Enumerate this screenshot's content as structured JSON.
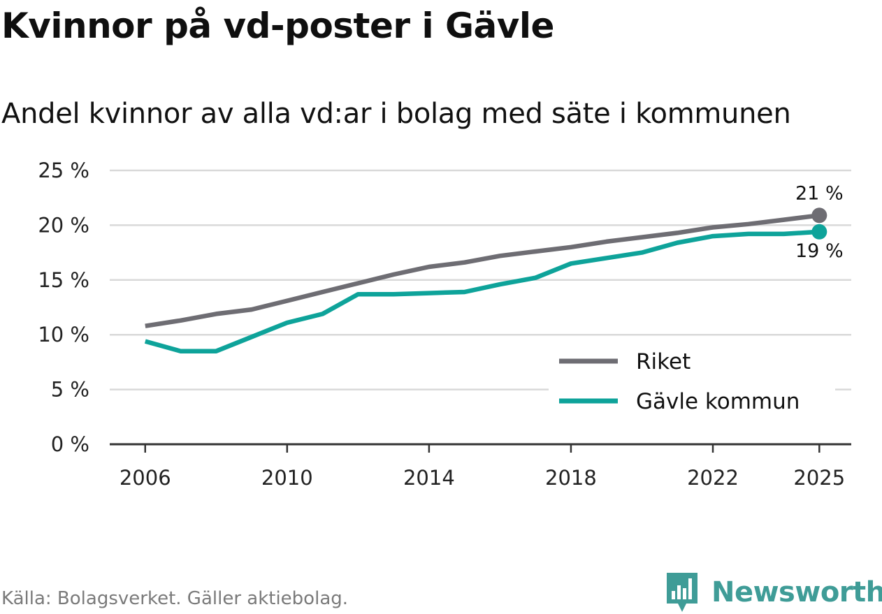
{
  "header": {
    "title": "Kvinnor på vd-poster i Gävle",
    "subtitle": "Andel kvinnor av alla vd:ar i bolag med säte i kommunen"
  },
  "footer": {
    "source": "Källa: Bolagsverket. Gäller aktiebolag.",
    "brand": "Newsworthy",
    "brand_icon": "bar-chart-icon"
  },
  "colors": {
    "riket": "#6e6d73",
    "gavle": "#0ea39a",
    "grid": "#d9d9d9",
    "axis": "#333333",
    "brand": "#3f9c97"
  },
  "chart_data": {
    "type": "line",
    "title": "Kvinnor på vd-poster i Gävle",
    "subtitle": "Andel kvinnor av alla vd:ar i bolag med säte i kommunen",
    "xlabel": "",
    "ylabel": "",
    "x": [
      2006,
      2007,
      2008,
      2009,
      2010,
      2011,
      2012,
      2013,
      2014,
      2015,
      2016,
      2017,
      2018,
      2019,
      2020,
      2021,
      2022,
      2023,
      2024,
      2025
    ],
    "xlim": [
      2005,
      2025.9
    ],
    "x_ticks": [
      2006,
      2010,
      2014,
      2018,
      2022,
      2025
    ],
    "x_tick_labels": [
      "2006",
      "2010",
      "2014",
      "2018",
      "2022",
      "2025"
    ],
    "ylim": [
      0,
      25
    ],
    "y_ticks": [
      0,
      5,
      10,
      15,
      20,
      25
    ],
    "y_tick_labels": [
      "0 %",
      "5 %",
      "10 %",
      "15 %",
      "20 %",
      "25 %"
    ],
    "grid": true,
    "legend_position": "bottom-right",
    "series": [
      {
        "name": "Riket",
        "key": "riket",
        "values": [
          10.8,
          11.3,
          11.9,
          12.3,
          13.1,
          13.9,
          14.7,
          15.5,
          16.2,
          16.6,
          17.2,
          17.6,
          18.0,
          18.5,
          18.9,
          19.3,
          19.8,
          20.1,
          20.5,
          20.9
        ],
        "end_label": "21 %"
      },
      {
        "name": "Gävle kommun",
        "key": "gavle",
        "values": [
          9.4,
          8.5,
          8.5,
          9.8,
          11.1,
          11.9,
          13.7,
          13.7,
          13.8,
          13.9,
          14.6,
          15.2,
          16.5,
          17.0,
          17.5,
          18.4,
          19.0,
          19.2,
          19.2,
          19.4
        ],
        "end_label": "19 %"
      }
    ]
  }
}
